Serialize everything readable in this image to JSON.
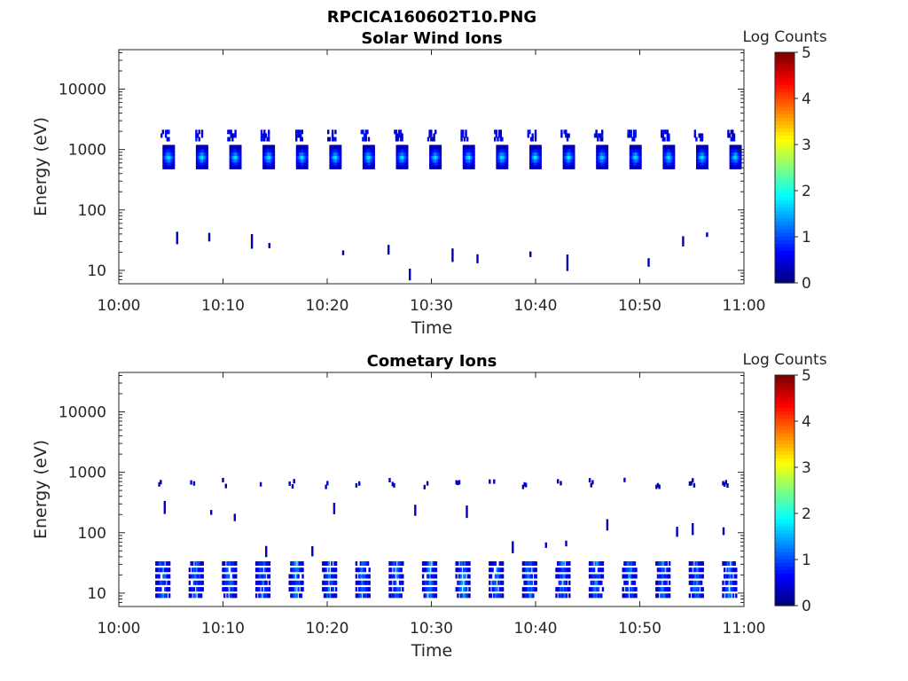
{
  "figure_title": "RPCICA160602T10.PNG",
  "chart_data": [
    {
      "type": "heatmap",
      "title": "Solar Wind Ions",
      "xlabel": "Time",
      "ylabel": "Energy (eV)",
      "x_ticks": [
        "10:00",
        "10:10",
        "10:20",
        "10:30",
        "10:40",
        "10:50",
        "11:00"
      ],
      "x_range_minutes": [
        0,
        60
      ],
      "y_scale": "log",
      "y_ticks": [
        "10",
        "100",
        "1000",
        "10000"
      ],
      "y_range": [
        6,
        45000
      ],
      "colorbar": {
        "label": "Log Counts",
        "ticks": [
          "0",
          "1",
          "2",
          "3",
          "4",
          "5"
        ],
        "range": [
          0,
          5
        ],
        "colormap": "jet"
      },
      "features": {
        "main_band": {
          "energy_center": 750,
          "intensity_peak": 1.8,
          "period_minutes": 3.2,
          "start_minute": 4.2,
          "end_minute": 59
        },
        "upper_band": {
          "energy_center": 1700,
          "intensity_peak": 0.7
        },
        "low_energy_sporadic": {
          "energy_range": [
            8,
            40
          ],
          "intensity": 0.3
        }
      }
    },
    {
      "type": "heatmap",
      "title": "Cometary Ions",
      "xlabel": "Time",
      "ylabel": "Energy (eV)",
      "x_ticks": [
        "10:00",
        "10:10",
        "10:20",
        "10:30",
        "10:40",
        "10:50",
        "11:00"
      ],
      "x_range_minutes": [
        0,
        60
      ],
      "y_scale": "log",
      "y_ticks": [
        "10",
        "100",
        "1000",
        "10000"
      ],
      "y_range": [
        6,
        45000
      ],
      "colorbar": {
        "label": "Log Counts",
        "ticks": [
          "0",
          "1",
          "2",
          "3",
          "4",
          "5"
        ],
        "range": [
          0,
          5
        ],
        "colormap": "jet"
      },
      "features": {
        "main_band": {
          "energy_range": [
            8,
            35
          ],
          "intensity_peak": 1.6,
          "period_minutes": 3.2,
          "start_minute": 3.5,
          "end_minute": 59
        },
        "upper_band": {
          "energy_center": 650,
          "intensity_peak": 0.4
        },
        "mid_sporadic": {
          "energy_range": [
            40,
            400
          ],
          "intensity": 0.3
        }
      }
    }
  ]
}
